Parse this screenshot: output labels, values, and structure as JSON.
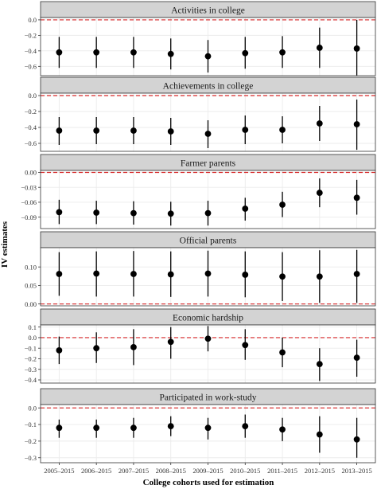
{
  "chart_data": {
    "type": "scatter",
    "subtype": "faceted point-range (estimate with interval)",
    "xlabel": "College cohorts used for estimation",
    "ylabel": "IV estimates",
    "categories": [
      "2005–2015",
      "2006–2015",
      "2007–2015",
      "2008–2015",
      "2009–2015",
      "2010–2015",
      "2011–2015",
      "2012–2015",
      "2013–2015"
    ],
    "grid": true,
    "reference_line": {
      "y": 0,
      "style": "dashed",
      "color": "#d62728"
    },
    "colors": {
      "point": "#000000",
      "strip": "#d3d3d3",
      "panel_bg": "#ffffff",
      "grid": "#ebebeb"
    },
    "panels": [
      {
        "title": "Activities in college",
        "ylim": [
          -0.72,
          0.03
        ],
        "ticks": [
          0.0,
          -0.2,
          -0.4,
          -0.6
        ],
        "tick_labels": [
          "0.0",
          "−0.2",
          "−0.4",
          "−0.6"
        ],
        "estimates": [
          -0.42,
          -0.42,
          -0.42,
          -0.44,
          -0.47,
          -0.43,
          -0.42,
          -0.36,
          -0.37
        ],
        "lower": [
          -0.62,
          -0.62,
          -0.62,
          -0.64,
          -0.68,
          -0.63,
          -0.62,
          -0.62,
          -0.72
        ],
        "upper": [
          -0.22,
          -0.22,
          -0.22,
          -0.24,
          -0.26,
          -0.22,
          -0.21,
          -0.1,
          0.0
        ]
      },
      {
        "title": "Achievements in college",
        "ylim": [
          -0.7,
          0.03
        ],
        "ticks": [
          0.0,
          -0.2,
          -0.4,
          -0.6
        ],
        "tick_labels": [
          "0.0",
          "−0.2",
          "−0.4",
          "−0.6"
        ],
        "estimates": [
          -0.44,
          -0.44,
          -0.44,
          -0.45,
          -0.48,
          -0.43,
          -0.43,
          -0.35,
          -0.36
        ],
        "lower": [
          -0.62,
          -0.61,
          -0.61,
          -0.62,
          -0.66,
          -0.61,
          -0.6,
          -0.57,
          -0.68
        ],
        "upper": [
          -0.27,
          -0.27,
          -0.27,
          -0.28,
          -0.31,
          -0.25,
          -0.26,
          -0.13,
          -0.05
        ]
      },
      {
        "title": "Farmer parents",
        "ylim": [
          -0.113,
          0.004
        ],
        "ticks": [
          0.0,
          -0.03,
          -0.06,
          -0.09
        ],
        "tick_labels": [
          "0.00",
          "−0.03",
          "−0.06",
          "−0.09"
        ],
        "estimates": [
          -0.08,
          -0.081,
          -0.082,
          -0.083,
          -0.082,
          -0.073,
          -0.065,
          -0.041,
          -0.051
        ],
        "lower": [
          -0.104,
          -0.104,
          -0.105,
          -0.107,
          -0.107,
          -0.097,
          -0.09,
          -0.07,
          -0.085
        ],
        "upper": [
          -0.055,
          -0.057,
          -0.058,
          -0.059,
          -0.057,
          -0.051,
          -0.039,
          -0.012,
          -0.015
        ]
      },
      {
        "title": "Official parents",
        "ylim": [
          -0.005,
          0.152
        ],
        "ticks": [
          0.1,
          0.05,
          0.0
        ],
        "tick_labels": [
          "0.10",
          "0.05",
          "0.00"
        ],
        "estimates": [
          0.081,
          0.082,
          0.081,
          0.08,
          0.082,
          0.079,
          0.074,
          0.074,
          0.081
        ],
        "lower": [
          0.022,
          0.02,
          0.02,
          0.019,
          0.02,
          0.018,
          0.008,
          0.003,
          0.003
        ],
        "upper": [
          0.14,
          0.142,
          0.143,
          0.142,
          0.144,
          0.142,
          0.14,
          0.145,
          0.146
        ]
      },
      {
        "title": "Economic hardship",
        "ylim": [
          -0.43,
          0.12
        ],
        "ticks": [
          0.1,
          0.0,
          -0.1,
          -0.2,
          -0.3,
          -0.4
        ],
        "tick_labels": [
          "0.1",
          "0.0",
          "−0.1",
          "−0.2",
          "−0.3",
          "−0.4"
        ],
        "estimates": [
          -0.12,
          -0.1,
          -0.09,
          -0.04,
          -0.01,
          -0.07,
          -0.14,
          -0.25,
          -0.19
        ],
        "lower": [
          -0.25,
          -0.24,
          -0.26,
          -0.2,
          -0.13,
          -0.21,
          -0.28,
          -0.41,
          -0.37
        ],
        "upper": [
          0.01,
          0.05,
          0.08,
          0.1,
          0.11,
          0.08,
          0.0,
          -0.1,
          -0.02
        ]
      },
      {
        "title": "Participated in work-study",
        "ylim": [
          -0.33,
          0.02
        ],
        "ticks": [
          0.0,
          -0.1,
          -0.2,
          -0.3
        ],
        "tick_labels": [
          "0.0",
          "−0.1",
          "−0.2",
          "−0.3"
        ],
        "estimates": [
          -0.12,
          -0.12,
          -0.12,
          -0.11,
          -0.12,
          -0.11,
          -0.13,
          -0.16,
          -0.19
        ],
        "lower": [
          -0.18,
          -0.18,
          -0.18,
          -0.17,
          -0.19,
          -0.18,
          -0.2,
          -0.27,
          -0.3
        ],
        "upper": [
          -0.07,
          -0.07,
          -0.06,
          -0.05,
          -0.06,
          -0.04,
          -0.06,
          -0.05,
          -0.06
        ]
      }
    ]
  }
}
